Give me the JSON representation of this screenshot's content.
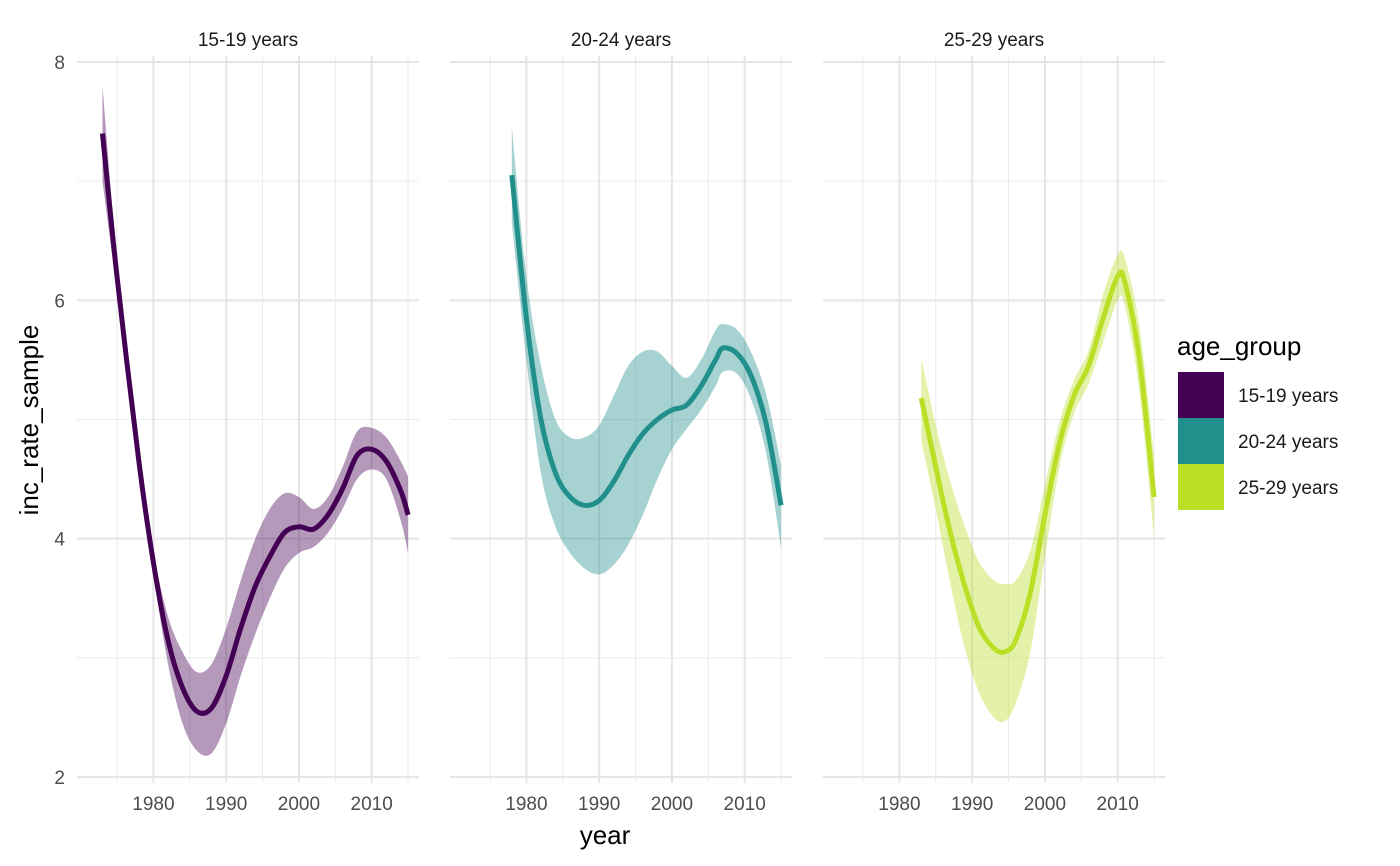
{
  "chart_data": {
    "type": "line",
    "facet_by": "age_group",
    "xlabel": "year",
    "ylabel": "inc_rate_sample",
    "xlim": [
      1969.5,
      2016.5
    ],
    "ylim": [
      1.95,
      8.05
    ],
    "x_ticks": [
      1980,
      1990,
      2000,
      2010
    ],
    "y_ticks": [
      2,
      4,
      6,
      8
    ],
    "grid": true,
    "legend": {
      "title": "age_group",
      "placement": "right",
      "entries": [
        {
          "label": "15-19 years",
          "color": "#440154"
        },
        {
          "label": "20-24 years",
          "color": "#21908C"
        },
        {
          "label": "25-29 years",
          "color": "#BBDF27"
        }
      ]
    },
    "series": [
      {
        "facet": "15-19 years",
        "color": "#440154",
        "ribbon_opacity": 0.4,
        "points": [
          {
            "x": 1973,
            "y": 7.4,
            "lo": 7.0,
            "hi": 7.8
          },
          {
            "x": 1975,
            "y": 6.2,
            "lo": 6.05,
            "hi": 6.35
          },
          {
            "x": 1978,
            "y": 4.65,
            "lo": 4.55,
            "hi": 4.75
          },
          {
            "x": 1980,
            "y": 3.8,
            "lo": 3.7,
            "hi": 3.9
          },
          {
            "x": 1982,
            "y": 3.15,
            "lo": 2.95,
            "hi": 3.35
          },
          {
            "x": 1984,
            "y": 2.75,
            "lo": 2.45,
            "hi": 3.05
          },
          {
            "x": 1986,
            "y": 2.55,
            "lo": 2.22,
            "hi": 2.88
          },
          {
            "x": 1988,
            "y": 2.58,
            "lo": 2.2,
            "hi": 2.95
          },
          {
            "x": 1990,
            "y": 2.85,
            "lo": 2.45,
            "hi": 3.25
          },
          {
            "x": 1992,
            "y": 3.25,
            "lo": 2.85,
            "hi": 3.65
          },
          {
            "x": 1994,
            "y": 3.6,
            "lo": 3.2,
            "hi": 4.0
          },
          {
            "x": 1996,
            "y": 3.85,
            "lo": 3.5,
            "hi": 4.25
          },
          {
            "x": 1998,
            "y": 4.05,
            "lo": 3.75,
            "hi": 4.38
          },
          {
            "x": 2000,
            "y": 4.1,
            "lo": 3.88,
            "hi": 4.35
          },
          {
            "x": 2002,
            "y": 4.08,
            "lo": 3.93,
            "hi": 4.25
          },
          {
            "x": 2004,
            "y": 4.2,
            "lo": 4.05,
            "hi": 4.35
          },
          {
            "x": 2006,
            "y": 4.42,
            "lo": 4.25,
            "hi": 4.6
          },
          {
            "x": 2008,
            "y": 4.7,
            "lo": 4.5,
            "hi": 4.9
          },
          {
            "x": 2010,
            "y": 4.75,
            "lo": 4.58,
            "hi": 4.93
          },
          {
            "x": 2012,
            "y": 4.65,
            "lo": 4.5,
            "hi": 4.85
          },
          {
            "x": 2014,
            "y": 4.4,
            "lo": 4.15,
            "hi": 4.65
          },
          {
            "x": 2015,
            "y": 4.2,
            "lo": 3.88,
            "hi": 4.52
          }
        ]
      },
      {
        "facet": "20-24 years",
        "color": "#21908C",
        "ribbon_opacity": 0.4,
        "points": [
          {
            "x": 1978,
            "y": 7.05,
            "lo": 6.65,
            "hi": 7.45
          },
          {
            "x": 1980,
            "y": 5.85,
            "lo": 5.5,
            "hi": 6.2
          },
          {
            "x": 1982,
            "y": 5.0,
            "lo": 4.55,
            "hi": 5.45
          },
          {
            "x": 1984,
            "y": 4.55,
            "lo": 4.1,
            "hi": 5.0
          },
          {
            "x": 1986,
            "y": 4.35,
            "lo": 3.88,
            "hi": 4.85
          },
          {
            "x": 1988,
            "y": 4.28,
            "lo": 3.75,
            "hi": 4.85
          },
          {
            "x": 1990,
            "y": 4.32,
            "lo": 3.7,
            "hi": 4.95
          },
          {
            "x": 1992,
            "y": 4.48,
            "lo": 3.78,
            "hi": 5.2
          },
          {
            "x": 1994,
            "y": 4.7,
            "lo": 3.95,
            "hi": 5.45
          },
          {
            "x": 1996,
            "y": 4.88,
            "lo": 4.2,
            "hi": 5.57
          },
          {
            "x": 1998,
            "y": 5.0,
            "lo": 4.5,
            "hi": 5.57
          },
          {
            "x": 2000,
            "y": 5.08,
            "lo": 4.75,
            "hi": 5.45
          },
          {
            "x": 2002,
            "y": 5.12,
            "lo": 4.92,
            "hi": 5.35
          },
          {
            "x": 2004,
            "y": 5.28,
            "lo": 5.08,
            "hi": 5.5
          },
          {
            "x": 2006,
            "y": 5.5,
            "lo": 5.28,
            "hi": 5.75
          },
          {
            "x": 2007,
            "y": 5.6,
            "lo": 5.4,
            "hi": 5.8
          },
          {
            "x": 2009,
            "y": 5.55,
            "lo": 5.38,
            "hi": 5.75
          },
          {
            "x": 2011,
            "y": 5.35,
            "lo": 5.15,
            "hi": 5.55
          },
          {
            "x": 2013,
            "y": 4.95,
            "lo": 4.7,
            "hi": 5.2
          },
          {
            "x": 2015,
            "y": 4.28,
            "lo": 3.92,
            "hi": 4.62
          }
        ]
      },
      {
        "facet": "25-29 years",
        "color": "#BBDF27",
        "ribbon_opacity": 0.4,
        "points": [
          {
            "x": 1983,
            "y": 5.18,
            "lo": 4.82,
            "hi": 5.52
          },
          {
            "x": 1985,
            "y": 4.6,
            "lo": 4.25,
            "hi": 4.95
          },
          {
            "x": 1987,
            "y": 4.05,
            "lo": 3.62,
            "hi": 4.48
          },
          {
            "x": 1989,
            "y": 3.6,
            "lo": 3.08,
            "hi": 4.1
          },
          {
            "x": 1991,
            "y": 3.25,
            "lo": 2.7,
            "hi": 3.8
          },
          {
            "x": 1993,
            "y": 3.08,
            "lo": 2.5,
            "hi": 3.65
          },
          {
            "x": 1994.5,
            "y": 3.05,
            "lo": 2.47,
            "hi": 3.62
          },
          {
            "x": 1996,
            "y": 3.15,
            "lo": 2.62,
            "hi": 3.65
          },
          {
            "x": 1998,
            "y": 3.55,
            "lo": 3.05,
            "hi": 3.9
          },
          {
            "x": 2000,
            "y": 4.2,
            "lo": 3.85,
            "hi": 4.45
          },
          {
            "x": 2002,
            "y": 4.8,
            "lo": 4.6,
            "hi": 4.98
          },
          {
            "x": 2004,
            "y": 5.2,
            "lo": 5.05,
            "hi": 5.33
          },
          {
            "x": 2006,
            "y": 5.45,
            "lo": 5.3,
            "hi": 5.58
          },
          {
            "x": 2008,
            "y": 5.85,
            "lo": 5.65,
            "hi": 6.05
          },
          {
            "x": 2010,
            "y": 6.2,
            "lo": 6.0,
            "hi": 6.38
          },
          {
            "x": 2011,
            "y": 6.15,
            "lo": 5.95,
            "hi": 6.35
          },
          {
            "x": 2013,
            "y": 5.5,
            "lo": 5.22,
            "hi": 5.78
          },
          {
            "x": 2015,
            "y": 4.35,
            "lo": 4.0,
            "hi": 4.7
          }
        ]
      }
    ]
  }
}
